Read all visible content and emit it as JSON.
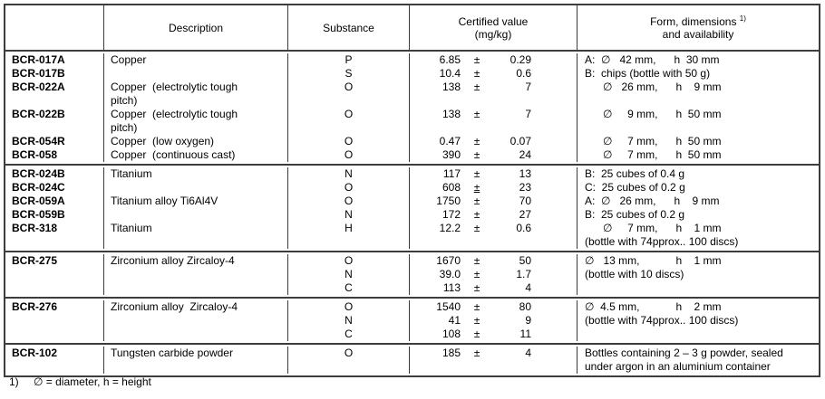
{
  "table": {
    "headers": {
      "id": "",
      "description": "Description",
      "substance": "Substance",
      "certified_1": "Certified value",
      "certified_2": "(mg/kg)",
      "form_1": "Form, dimensions ",
      "form_sup": "1)",
      "form_2": "and availability"
    },
    "groups": [
      {
        "lines": [
          {
            "id": "BCR-017A",
            "desc": "Copper",
            "sub": "P",
            "val": "6.85",
            "pm": "±",
            "unc": "0.29",
            "form": "A:  ∅   42 mm,      h  30 mm"
          },
          {
            "id": "BCR-017B",
            "desc": "",
            "sub": "S",
            "val": "10.4",
            "pm": "±",
            "unc": "0.6",
            "form": "B:  chips (bottle with 50 g)"
          },
          {
            "id": "BCR-022A",
            "desc": "Copper  (electrolytic tough",
            "sub": "O",
            "val": "138",
            "pm": "±",
            "unc": "7",
            "form": "      ∅   26 mm,      h    9 mm"
          },
          {
            "id": "",
            "desc": "pitch)",
            "sub": "",
            "val": "",
            "pm": "",
            "unc": "",
            "form": ""
          },
          {
            "id": "BCR-022B",
            "desc": "Copper  (electrolytic tough",
            "sub": "O",
            "val": "138",
            "pm": "±",
            "unc": "7",
            "form": "      ∅     9 mm,      h  50 mm"
          },
          {
            "id": "",
            "desc": "pitch)",
            "sub": "",
            "val": "",
            "pm": "",
            "unc": "",
            "form": ""
          },
          {
            "id": "BCR-054R",
            "desc": "Copper  (low oxygen)",
            "sub": "O",
            "val": "0.47",
            "pm": "±",
            "unc": "0.07",
            "form": "      ∅     7 mm,      h  50 mm"
          },
          {
            "id": "BCR-058",
            "desc": "Copper  (continuous cast)",
            "sub": "O",
            "val": "390",
            "pm": "±",
            "unc": "24",
            "form": "      ∅     7 mm,      h  50 mm"
          }
        ]
      },
      {
        "lines": [
          {
            "id": "BCR-024B",
            "desc": "Titanium",
            "sub": "N",
            "val": "117",
            "pm": "±",
            "unc": "13",
            "form": "B:  25 cubes of 0.4 g"
          },
          {
            "id": "BCR-024C",
            "desc": "",
            "sub": "O",
            "val": "608",
            "pm": "±",
            "pm_u": true,
            "unc": "23",
            "form": "C:  25 cubes of 0.2 g"
          },
          {
            "id": "BCR-059A",
            "desc": "Titanium alloy Ti6Al4V",
            "sub": "O",
            "val": "1750",
            "pm": "±",
            "unc": "70",
            "form": "A:  ∅   26 mm,      h    9 mm"
          },
          {
            "id": "BCR-059B",
            "desc": "",
            "sub": "N",
            "val": "172",
            "pm": "±",
            "unc": "27",
            "form": "B:  25 cubes of 0.2 g"
          },
          {
            "id": "BCR-318",
            "desc": "Titanium",
            "sub": "H",
            "val": "12.2",
            "pm": "±",
            "unc": "0.6",
            "form": "      ∅     7 mm,      h    1 mm"
          },
          {
            "id": "",
            "desc": "",
            "sub": "",
            "val": "",
            "pm": "",
            "unc": "",
            "form": "(bottle with 74pprox.. 100 discs)"
          }
        ]
      },
      {
        "lines": [
          {
            "id": "BCR-275",
            "desc": "Zirconium alloy Zircaloy-4",
            "sub": "O",
            "val": "1670",
            "pm": "±",
            "unc": "50",
            "form": "∅   13 mm,            h    1 mm"
          },
          {
            "id": "",
            "desc": "",
            "sub": "N",
            "val": "39.0",
            "pm": "±",
            "unc": "1.7",
            "form": "(bottle with 10 discs)"
          },
          {
            "id": "",
            "desc": "",
            "sub": "C",
            "val": "113",
            "pm": "±",
            "unc": "4",
            "form": ""
          }
        ]
      },
      {
        "lines": [
          {
            "id": "BCR-276",
            "desc": "Zirconium alloy  Zircaloy-4",
            "sub": "O",
            "val": "1540",
            "pm": "±",
            "unc": "80",
            "form": "∅  4.5 mm,            h    2 mm"
          },
          {
            "id": "",
            "desc": "",
            "sub": "N",
            "val": "41",
            "pm": "±",
            "unc": "9",
            "form": "(bottle with 74pprox.. 100 discs)"
          },
          {
            "id": "",
            "desc": "",
            "sub": "C",
            "val": "108",
            "pm": "±",
            "unc": "11",
            "form": ""
          }
        ]
      },
      {
        "lines": [
          {
            "id": "BCR-102",
            "desc": "Tungsten carbide powder",
            "sub": "O",
            "val": "185",
            "pm": "±",
            "unc": "4",
            "form": "Bottles containing 2 – 3 g powder, sealed"
          },
          {
            "id": "",
            "desc": "",
            "sub": "",
            "val": "",
            "pm": "",
            "unc": "",
            "form": "under argon in an aluminium container"
          }
        ]
      }
    ]
  },
  "footnote": {
    "marker": "1)",
    "text": "∅ = diameter, h = height"
  }
}
